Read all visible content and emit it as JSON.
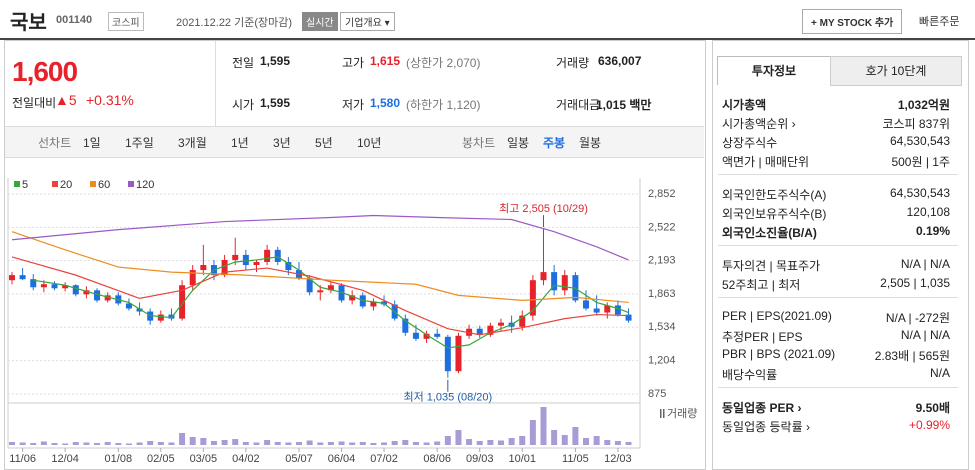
{
  "header": {
    "name": "국보",
    "code": "001140",
    "market": "코스피",
    "date": "2021.12.22 기준(장마감)",
    "realtime": "실시간",
    "overview": "기업개요 ▾",
    "mystock": "+ MY STOCK 추가",
    "quick_order": "빠른주문"
  },
  "price": {
    "current": "1,600",
    "change_label": "전일대비",
    "change": "▲5",
    "change_pct": "+0.31%"
  },
  "quotes": [
    [
      {
        "label": "전일",
        "value": "1,595"
      },
      {
        "label": "고가",
        "value": "1,615",
        "note": "(상한가 2,070)"
      },
      {
        "label": "거래량",
        "value": "636,007"
      }
    ],
    [
      {
        "label": "시가",
        "value": "1,595"
      },
      {
        "label": "저가",
        "value": "1,580",
        "note": "(하한가 1,120)"
      },
      {
        "label": "거래대금",
        "value": "1,015 백만"
      }
    ]
  ],
  "toolbar": {
    "line_label": "선차트",
    "line_periods": [
      "1일",
      "1주일",
      "3개월",
      "1년",
      "3년",
      "5년",
      "10년"
    ],
    "candle_label": "봉차트",
    "candle_periods": [
      "일봉",
      "주봉",
      "월봉"
    ],
    "selected": "주봉"
  },
  "chart_data": {
    "type": "candlestick",
    "up_color": "#e8222a",
    "down_color": "#1d6fe0",
    "open": [
      2000,
      2050,
      2010,
      1930,
      1960,
      1920,
      1950,
      1860,
      1900,
      1800,
      1850,
      1770,
      1720,
      1690,
      1600,
      1660,
      1620,
      1950,
      2100,
      2150,
      2050,
      2200,
      2250,
      2150,
      2180,
      2300,
      2180,
      2100,
      2020,
      1880,
      1900,
      1950,
      1800,
      1850,
      1740,
      1790,
      1760,
      1620,
      1480,
      1420,
      1470,
      1440,
      1100,
      1450,
      1520,
      1460,
      1550,
      1580,
      1540,
      1650,
      2000,
      2080,
      1900,
      2050,
      1800,
      1720,
      1680,
      1750,
      1660
    ],
    "high": [
      2080,
      2120,
      2060,
      2000,
      1990,
      1980,
      1960,
      1940,
      1920,
      1880,
      1880,
      1820,
      1780,
      1720,
      1700,
      1720,
      2000,
      2150,
      2350,
      2200,
      2250,
      2420,
      2300,
      2200,
      2350,
      2330,
      2230,
      2180,
      2050,
      1950,
      1980,
      1970,
      1900,
      1880,
      1820,
      1850,
      1800,
      1660,
      1560,
      1500,
      1520,
      1460,
      1480,
      1560,
      1550,
      1580,
      1620,
      1650,
      1700,
      2050,
      2505,
      2150,
      2100,
      2080,
      1900,
      1850,
      1780,
      1800,
      1720
    ],
    "low": [
      1960,
      2000,
      1900,
      1880,
      1900,
      1890,
      1840,
      1820,
      1780,
      1780,
      1750,
      1700,
      1650,
      1560,
      1580,
      1600,
      1600,
      1900,
      2050,
      2000,
      2030,
      2150,
      2100,
      2080,
      2150,
      2150,
      2050,
      2000,
      1850,
      1800,
      1870,
      1780,
      1760,
      1720,
      1700,
      1740,
      1600,
      1450,
      1400,
      1380,
      1420,
      1035,
      1080,
      1420,
      1430,
      1440,
      1500,
      1480,
      1500,
      1600,
      1950,
      1850,
      1850,
      1780,
      1700,
      1650,
      1620,
      1640,
      1580
    ],
    "close": [
      2050,
      2010,
      1930,
      1960,
      1920,
      1950,
      1860,
      1900,
      1800,
      1850,
      1770,
      1720,
      1690,
      1600,
      1660,
      1620,
      1950,
      2100,
      2150,
      2050,
      2200,
      2250,
      2150,
      2180,
      2300,
      2180,
      2100,
      2020,
      1880,
      1900,
      1950,
      1800,
      1850,
      1740,
      1790,
      1760,
      1620,
      1480,
      1420,
      1470,
      1440,
      1100,
      1450,
      1520,
      1460,
      1550,
      1580,
      1540,
      1650,
      2000,
      2080,
      1900,
      2050,
      1800,
      1720,
      1680,
      1750,
      1660,
      1600
    ],
    "volume": [
      300000,
      250000,
      200000,
      350000,
      200000,
      150000,
      300000,
      250000,
      200000,
      300000,
      200000,
      150000,
      250000,
      400000,
      300000,
      250000,
      1200000,
      800000,
      700000,
      400000,
      500000,
      600000,
      300000,
      250000,
      500000,
      300000,
      250000,
      300000,
      450000,
      250000,
      300000,
      350000,
      250000,
      300000,
      200000,
      250000,
      400000,
      500000,
      300000,
      250000,
      350000,
      900000,
      1500000,
      600000,
      400000,
      500000,
      450000,
      700000,
      900000,
      2500000,
      3800000,
      1500000,
      1000000,
      1800000,
      700000,
      900000,
      500000,
      400000,
      300000
    ],
    "volume_color": "#a99bd6",
    "volume_lim": [
      0,
      4000000
    ],
    "volume_label": "거래량",
    "ma": [
      {
        "name": "5",
        "color": "#3aa53a",
        "x": [
          2,
          5,
          8,
          11,
          13,
          15,
          17,
          19,
          21,
          23,
          25,
          27,
          29,
          31,
          33,
          35,
          37,
          39,
          41,
          43,
          45,
          47,
          49,
          51,
          53,
          55,
          57,
          58
        ],
        "values": [
          2000,
          1950,
          1860,
          1780,
          1650,
          1630,
          1900,
          2100,
          2180,
          2200,
          2230,
          2100,
          1930,
          1880,
          1800,
          1770,
          1600,
          1460,
          1330,
          1360,
          1480,
          1560,
          1700,
          1950,
          1920,
          1780,
          1720,
          1680
        ]
      },
      {
        "name": "20",
        "color": "#e8453c",
        "x": [
          0,
          6,
          12,
          16,
          20,
          24,
          28,
          33,
          37,
          41,
          44,
          48,
          52,
          55,
          58
        ],
        "values": [
          2230,
          2050,
          1820,
          1900,
          2080,
          2120,
          2040,
          1900,
          1700,
          1520,
          1460,
          1530,
          1620,
          1660,
          1650
        ]
      },
      {
        "name": "60",
        "color": "#f08c1e",
        "x": [
          0,
          5,
          10,
          15,
          22,
          30,
          38,
          42,
          48,
          53,
          58
        ],
        "values": [
          2480,
          2300,
          2130,
          2080,
          2050,
          2000,
          1960,
          1850,
          1800,
          1830,
          1780
        ]
      },
      {
        "name": "120",
        "color": "#9b59c6",
        "x": [
          0,
          10,
          20,
          30,
          34,
          40,
          47,
          51,
          55,
          58
        ],
        "values": [
          2400,
          2500,
          2580,
          2620,
          2640,
          2620,
          2600,
          2480,
          2330,
          2200
        ]
      }
    ],
    "ylim": [
      815,
      2892
    ],
    "yticks": [
      {
        "value": 2852,
        "label": "2,852"
      },
      {
        "value": 2522,
        "label": "2,522"
      },
      {
        "value": 2193,
        "label": "2,193"
      },
      {
        "value": 1863,
        "label": "1,863"
      },
      {
        "value": 1534,
        "label": "1,534"
      },
      {
        "value": 1204,
        "label": "1,204"
      },
      875
    ],
    "xticks": [
      {
        "value": 1,
        "label": "11/06"
      },
      {
        "value": 5,
        "label": "12/04"
      },
      {
        "value": 10,
        "label": "01/08"
      },
      {
        "value": 14,
        "label": "02/05"
      },
      {
        "value": 18,
        "label": "03/05"
      },
      {
        "value": 22,
        "label": "04/02"
      },
      {
        "value": 27,
        "label": "05/07"
      },
      {
        "value": 31,
        "label": "06/04"
      },
      {
        "value": 35,
        "label": "07/02"
      },
      {
        "value": 40,
        "label": "08/06"
      },
      {
        "value": 44,
        "label": "09/03"
      },
      {
        "value": 48,
        "label": "10/01"
      },
      {
        "value": 53,
        "label": "11/05"
      },
      {
        "value": 57,
        "label": "12/03"
      }
    ],
    "annotations": [
      {
        "text": "최고 2,505 (10/29)",
        "x": 50,
        "y": 2505,
        "color": "#d7262f"
      },
      {
        "text": "최저 1,035 (08/20)",
        "x": 41,
        "y": 1035,
        "color": "#1d5ea8"
      }
    ],
    "grid": true
  },
  "side": {
    "tabs": [
      "투자정보",
      "호가 10단계"
    ],
    "groups": [
      [
        [
          "시가총액",
          "1,032억원"
        ],
        [
          "시가총액순위 ›",
          "코스피 837위"
        ],
        [
          "상장주식수",
          "64,530,543"
        ],
        [
          "액면가 | 매매단위",
          "500원 | 1주"
        ]
      ],
      [
        [
          "외국인한도주식수(A)",
          "64,530,543"
        ],
        [
          "외국인보유주식수(B)",
          "120,108"
        ],
        [
          "외국인소진율(B/A)",
          "0.19%"
        ]
      ],
      [
        [
          "투자의견 | 목표주가",
          "N/A | N/A"
        ],
        [
          "52주최고 | 최저",
          "2,505 | 1,035"
        ]
      ],
      [
        [
          "PER | EPS(2021.09)",
          "N/A | -272원"
        ],
        [
          "추정PER | EPS",
          "N/A | N/A"
        ],
        [
          "PBR | BPS (2021.09)",
          "2.83배 | 565원"
        ],
        [
          "배당수익률",
          "N/A"
        ]
      ],
      [
        [
          "동일업종 PER ›",
          "9.50배"
        ],
        [
          "동일업종 등락률 ›",
          "+0.99%"
        ]
      ]
    ]
  }
}
